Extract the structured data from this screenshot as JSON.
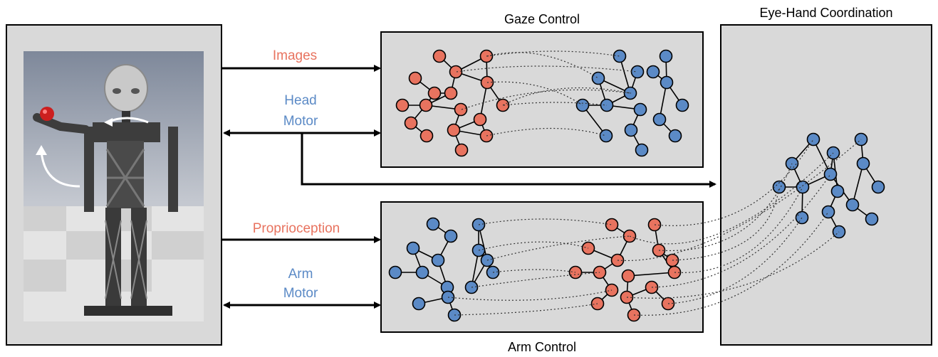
{
  "boxes": {
    "gaze_title": "Gaze Control",
    "arm_title": "Arm Control",
    "eye_hand_title": "Eye-Hand Coordination"
  },
  "signals": {
    "images": "Images",
    "head_line1": "Head",
    "head_line2": "Motor",
    "proprioception": "Proprioception",
    "arm_line1": "Arm",
    "arm_line2": "Motor"
  },
  "colors": {
    "visual": "#e8735f",
    "motor": "#5b8ac6",
    "box_fill": "#d9d9d9"
  }
}
